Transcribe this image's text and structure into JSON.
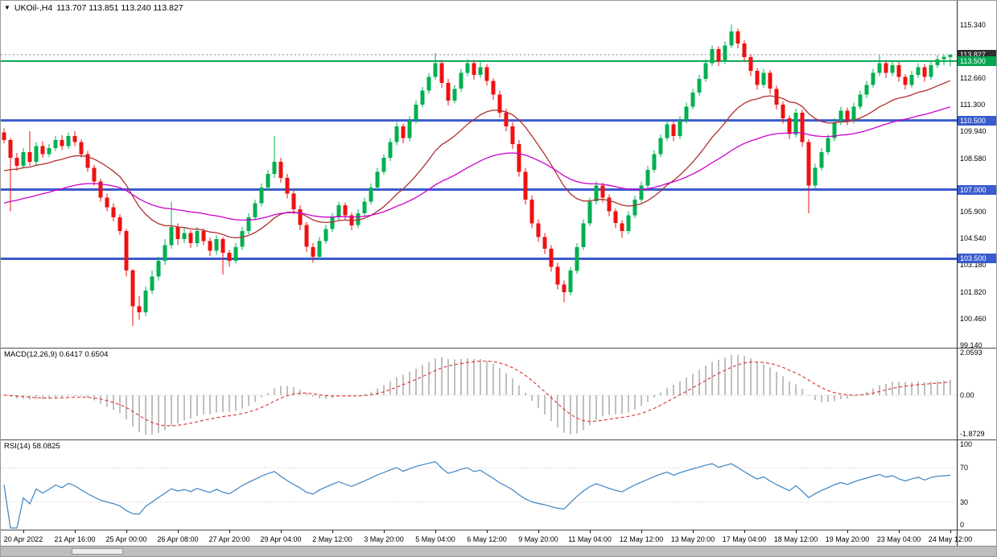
{
  "title": {
    "menu_glyph": "▼",
    "symbol_period": "UKOil-,H4",
    "ohlc_readout": "113.707 113.851 113.240 113.827"
  },
  "colors": {
    "up": "#00B050",
    "down": "#EE1111",
    "ma_fast": "#B03030",
    "ma_slow": "#CC00CC",
    "level_blue": "#3A5BCD",
    "level_green": "#00A651",
    "current_price_line": "#909090",
    "macd_hist": "#C0C0C0",
    "macd_signal": "#E03C3C",
    "rsi_line": "#3B83C4",
    "current_price_label_bg": "#2F2F2F",
    "panel_bg": "#FFFFFF",
    "axis_text": "#000000"
  },
  "price_axis": {
    "ticks": [
      {
        "price": 115.34,
        "label": "115.340"
      },
      {
        "price": 112.66,
        "label": "112.660"
      },
      {
        "price": 111.3,
        "label": "111.300"
      },
      {
        "price": 109.94,
        "label": "109.940"
      },
      {
        "price": 108.58,
        "label": "108.580"
      },
      {
        "price": 105.9,
        "label": "105.900"
      },
      {
        "price": 104.54,
        "label": "104.540"
      },
      {
        "price": 103.18,
        "label": "103.180"
      },
      {
        "price": 101.82,
        "label": "101.820"
      },
      {
        "price": 100.46,
        "label": "100.460"
      },
      {
        "price": 99.14,
        "label": "99.140"
      }
    ],
    "special_labels": [
      {
        "price": 113.827,
        "label": "113.827",
        "bg": "#2F2F2F",
        "name": "current-price-label"
      },
      {
        "price": 113.5,
        "label": "113.500",
        "bg": "#00A651",
        "name": "green-level-label"
      },
      {
        "price": 110.5,
        "label": "110.500",
        "bg": "#3A5BCD",
        "name": "blue-level-label"
      },
      {
        "price": 107.0,
        "label": "107.000",
        "bg": "#3A5BCD",
        "name": "blue-level-label"
      },
      {
        "price": 103.5,
        "label": "103.500",
        "bg": "#3A5BCD",
        "name": "blue-level-label"
      }
    ]
  },
  "levels": {
    "green_line": {
      "price": 113.5,
      "thickness": 2
    },
    "blue_lines": [
      {
        "price": 110.5
      },
      {
        "price": 107.0
      },
      {
        "price": 103.5
      }
    ],
    "blue_thickness": 3,
    "current_price": 113.827
  },
  "macd_panel": {
    "label": "MACD(12,26,9) 0.6417 0.6504",
    "macd_value": 0.6417,
    "signal_value": 0.6504,
    "fast": 12,
    "slow": 26,
    "signal": 9,
    "axis_labels": [
      {
        "value": 2.0593,
        "label": "2.0593"
      },
      {
        "value": 0,
        "label": "0.00"
      },
      {
        "value": -1.8729,
        "label": "-1.8729"
      }
    ]
  },
  "rsi_panel": {
    "label": "RSI(14) 58.0825",
    "rsi_value": 58.0825,
    "period": 14,
    "levels": [
      70,
      30
    ],
    "axis_labels": [
      {
        "value": 100,
        "label": "100"
      },
      {
        "value": 70,
        "label": "70"
      },
      {
        "value": 30,
        "label": "30"
      },
      {
        "value": 0,
        "label": "0"
      }
    ]
  },
  "time_axis": {
    "first_bar_index": 3,
    "bar_step": 8,
    "labels": [
      "20 Apr 2022",
      "21 Apr 16:00",
      "25 Apr 00:00",
      "26 Apr 08:00",
      "27 Apr 20:00",
      "29 Apr 04:00",
      "2 May 12:00",
      "3 May 20:00",
      "5 May 04:00",
      "6 May 12:00",
      "9 May 20:00",
      "11 May 04:00",
      "12 May 12:00",
      "13 May 20:00",
      "17 May 04:00",
      "18 May 12:00",
      "19 May 20:00",
      "23 May 04:00",
      "24 May 12:00"
    ]
  },
  "chart_data": {
    "type": "candlestick",
    "symbol": "UKOil-",
    "timeframe": "H4",
    "title": "UKOil-,H4 113.707 113.851 113.240 113.827",
    "last_ohlc": {
      "open": 113.707,
      "high": 113.851,
      "low": 113.24,
      "close": 113.827
    },
    "price_range_shown": [
      99.14,
      115.34
    ],
    "horizontal_levels": [
      113.5,
      110.5,
      107.0,
      103.5
    ],
    "overlays": [
      {
        "name": "ma-fast",
        "method": "ema",
        "period": 21,
        "seed": 107.8
      },
      {
        "name": "ma-slow",
        "method": "ema",
        "period": 55,
        "seed": 106.2
      }
    ],
    "candles": [
      [
        109.9,
        110.1,
        109.35,
        109.5
      ],
      [
        109.5,
        109.6,
        105.9,
        108.6
      ],
      [
        108.6,
        108.85,
        107.95,
        108.2
      ],
      [
        108.2,
        109.1,
        108.05,
        108.9
      ],
      [
        108.9,
        109.95,
        108.2,
        108.4
      ],
      [
        108.4,
        109.4,
        108.25,
        109.2
      ],
      [
        109.2,
        109.45,
        108.6,
        108.8
      ],
      [
        108.8,
        109.3,
        108.65,
        109.1
      ],
      [
        109.1,
        109.7,
        108.95,
        109.5
      ],
      [
        109.5,
        109.75,
        109.0,
        109.2
      ],
      [
        109.2,
        109.9,
        109.05,
        109.7
      ],
      [
        109.7,
        109.95,
        109.2,
        109.4
      ],
      [
        109.4,
        109.55,
        108.6,
        108.8
      ],
      [
        108.8,
        108.95,
        107.9,
        108.1
      ],
      [
        108.1,
        108.25,
        107.2,
        107.4
      ],
      [
        107.4,
        107.55,
        106.4,
        106.6
      ],
      [
        106.6,
        106.8,
        105.9,
        106.1
      ],
      [
        106.1,
        106.3,
        105.4,
        105.6
      ],
      [
        105.6,
        105.75,
        104.7,
        104.9
      ],
      [
        104.9,
        105.0,
        102.6,
        102.9
      ],
      [
        102.9,
        103.0,
        100.1,
        101.1
      ],
      [
        101.1,
        101.6,
        100.4,
        100.8
      ],
      [
        100.8,
        102.1,
        100.6,
        101.9
      ],
      [
        101.9,
        102.9,
        101.7,
        102.6
      ],
      [
        102.6,
        103.6,
        102.4,
        103.4
      ],
      [
        103.4,
        104.5,
        103.2,
        104.2
      ],
      [
        104.2,
        106.4,
        104.0,
        105.1
      ],
      [
        105.1,
        105.3,
        104.2,
        104.5
      ],
      [
        104.5,
        105.05,
        104.3,
        104.8
      ],
      [
        104.8,
        104.95,
        104.05,
        104.3
      ],
      [
        104.3,
        105.1,
        104.1,
        104.9
      ],
      [
        104.9,
        105.05,
        104.2,
        104.4
      ],
      [
        104.4,
        104.55,
        103.65,
        103.9
      ],
      [
        103.9,
        104.7,
        103.7,
        104.5
      ],
      [
        104.5,
        104.6,
        102.7,
        103.8
      ],
      [
        103.8,
        103.95,
        103.1,
        103.4
      ],
      [
        103.4,
        104.3,
        103.25,
        104.1
      ],
      [
        104.1,
        105.1,
        103.95,
        104.9
      ],
      [
        104.9,
        105.8,
        104.75,
        105.6
      ],
      [
        105.6,
        106.5,
        105.45,
        106.3
      ],
      [
        106.3,
        107.3,
        106.15,
        107.1
      ],
      [
        107.1,
        108.0,
        106.95,
        107.8
      ],
      [
        107.8,
        109.7,
        107.6,
        108.4
      ],
      [
        108.4,
        108.6,
        107.35,
        107.6
      ],
      [
        107.6,
        107.8,
        106.55,
        106.8
      ],
      [
        106.8,
        107.0,
        105.75,
        106.0
      ],
      [
        106.0,
        106.2,
        104.95,
        105.2
      ],
      [
        105.2,
        105.35,
        103.85,
        104.1
      ],
      [
        104.1,
        104.3,
        103.3,
        103.6
      ],
      [
        103.6,
        104.6,
        103.45,
        104.4
      ],
      [
        104.4,
        105.2,
        104.25,
        105.0
      ],
      [
        105.0,
        105.8,
        104.85,
        105.6
      ],
      [
        105.6,
        106.4,
        105.45,
        106.2
      ],
      [
        106.2,
        106.35,
        105.45,
        105.7
      ],
      [
        105.7,
        105.85,
        104.95,
        105.2
      ],
      [
        105.2,
        106.0,
        105.05,
        105.8
      ],
      [
        105.8,
        106.6,
        105.65,
        106.4
      ],
      [
        106.4,
        107.3,
        106.25,
        107.1
      ],
      [
        107.1,
        108.1,
        106.95,
        107.9
      ],
      [
        107.9,
        108.8,
        107.75,
        108.6
      ],
      [
        108.6,
        109.6,
        108.45,
        109.4
      ],
      [
        109.4,
        110.4,
        109.25,
        110.2
      ],
      [
        110.2,
        110.35,
        109.35,
        109.6
      ],
      [
        109.6,
        110.7,
        109.45,
        110.5
      ],
      [
        110.5,
        111.5,
        110.35,
        111.3
      ],
      [
        111.3,
        112.2,
        111.15,
        112.0
      ],
      [
        112.0,
        112.9,
        111.85,
        112.7
      ],
      [
        112.7,
        113.9,
        112.55,
        113.4
      ],
      [
        113.4,
        113.55,
        112.15,
        112.4
      ],
      [
        112.4,
        112.6,
        111.25,
        111.5
      ],
      [
        111.5,
        112.3,
        111.35,
        112.1
      ],
      [
        112.1,
        113.1,
        111.95,
        112.9
      ],
      [
        112.9,
        113.6,
        112.75,
        113.4
      ],
      [
        113.4,
        113.55,
        112.55,
        112.8
      ],
      [
        112.8,
        113.45,
        112.65,
        113.2
      ],
      [
        113.2,
        113.35,
        112.25,
        112.5
      ],
      [
        112.5,
        112.65,
        111.55,
        111.8
      ],
      [
        111.8,
        112.0,
        110.65,
        110.9
      ],
      [
        110.9,
        111.1,
        109.95,
        110.2
      ],
      [
        110.2,
        110.4,
        109.05,
        109.3
      ],
      [
        109.3,
        109.5,
        107.65,
        107.9
      ],
      [
        107.9,
        108.1,
        106.25,
        106.5
      ],
      [
        106.5,
        106.7,
        105.05,
        105.3
      ],
      [
        105.3,
        105.5,
        104.35,
        104.6
      ],
      [
        104.6,
        104.8,
        103.75,
        104.0
      ],
      [
        104.0,
        104.2,
        102.85,
        103.1
      ],
      [
        103.1,
        103.3,
        101.95,
        102.2
      ],
      [
        102.2,
        102.4,
        101.3,
        101.8
      ],
      [
        101.8,
        103.1,
        101.65,
        102.9
      ],
      [
        102.9,
        104.3,
        102.75,
        104.1
      ],
      [
        104.1,
        105.5,
        103.95,
        105.3
      ],
      [
        105.3,
        106.6,
        105.15,
        106.4
      ],
      [
        106.4,
        107.4,
        106.25,
        107.2
      ],
      [
        107.2,
        107.35,
        106.35,
        106.6
      ],
      [
        106.6,
        106.75,
        105.65,
        105.9
      ],
      [
        105.9,
        106.05,
        105.05,
        105.3
      ],
      [
        105.3,
        105.45,
        104.55,
        104.9
      ],
      [
        104.9,
        105.9,
        104.75,
        105.7
      ],
      [
        105.7,
        106.7,
        105.55,
        106.5
      ],
      [
        106.5,
        107.4,
        106.35,
        107.2
      ],
      [
        107.2,
        108.2,
        107.05,
        108.0
      ],
      [
        108.0,
        109.0,
        107.85,
        108.8
      ],
      [
        108.8,
        109.8,
        108.65,
        109.6
      ],
      [
        109.6,
        110.5,
        109.45,
        110.3
      ],
      [
        110.3,
        110.45,
        109.45,
        109.7
      ],
      [
        109.7,
        110.7,
        109.55,
        110.5
      ],
      [
        110.5,
        111.4,
        110.35,
        111.2
      ],
      [
        111.2,
        112.1,
        111.05,
        111.9
      ],
      [
        111.9,
        112.8,
        111.75,
        112.6
      ],
      [
        112.6,
        113.6,
        112.45,
        113.4
      ],
      [
        113.4,
        114.3,
        113.25,
        114.1
      ],
      [
        114.1,
        114.25,
        113.25,
        113.5
      ],
      [
        113.5,
        114.5,
        113.35,
        114.3
      ],
      [
        114.3,
        115.34,
        114.15,
        115.0
      ],
      [
        115.0,
        115.15,
        114.15,
        114.4
      ],
      [
        114.4,
        114.55,
        113.45,
        113.7
      ],
      [
        113.7,
        113.85,
        112.75,
        113.0
      ],
      [
        113.0,
        113.15,
        112.05,
        112.3
      ],
      [
        112.3,
        113.1,
        112.15,
        112.9
      ],
      [
        112.9,
        113.05,
        111.85,
        112.1
      ],
      [
        112.1,
        112.25,
        111.05,
        111.3
      ],
      [
        111.3,
        111.45,
        110.35,
        110.6
      ],
      [
        110.6,
        110.75,
        109.55,
        109.8
      ],
      [
        109.8,
        111.1,
        109.65,
        110.9
      ],
      [
        110.9,
        111.05,
        109.15,
        109.4
      ],
      [
        109.4,
        109.55,
        105.8,
        107.2
      ],
      [
        107.2,
        108.3,
        107.05,
        108.1
      ],
      [
        108.1,
        109.1,
        107.95,
        108.9
      ],
      [
        108.9,
        109.8,
        108.75,
        109.6
      ],
      [
        109.6,
        110.6,
        109.45,
        110.4
      ],
      [
        110.4,
        111.2,
        110.25,
        111.0
      ],
      [
        111.0,
        111.15,
        110.25,
        110.5
      ],
      [
        110.5,
        111.4,
        110.35,
        111.2
      ],
      [
        111.2,
        112.0,
        111.05,
        111.8
      ],
      [
        111.8,
        112.5,
        111.65,
        112.3
      ],
      [
        112.3,
        113.1,
        112.15,
        112.9
      ],
      [
        112.9,
        113.8,
        112.75,
        113.4
      ],
      [
        113.4,
        113.55,
        112.65,
        112.9
      ],
      [
        112.9,
        113.5,
        112.75,
        113.3
      ],
      [
        113.3,
        113.45,
        112.45,
        112.7
      ],
      [
        112.7,
        112.85,
        112.05,
        112.3
      ],
      [
        112.3,
        113.0,
        112.15,
        112.8
      ],
      [
        112.8,
        113.4,
        112.65,
        113.2
      ],
      [
        113.2,
        113.35,
        112.45,
        112.7
      ],
      [
        112.7,
        113.5,
        112.55,
        113.3
      ],
      [
        113.3,
        113.8,
        113.15,
        113.6
      ],
      [
        113.6,
        113.85,
        113.3,
        113.71
      ],
      [
        113.71,
        113.851,
        113.24,
        113.827
      ]
    ]
  }
}
